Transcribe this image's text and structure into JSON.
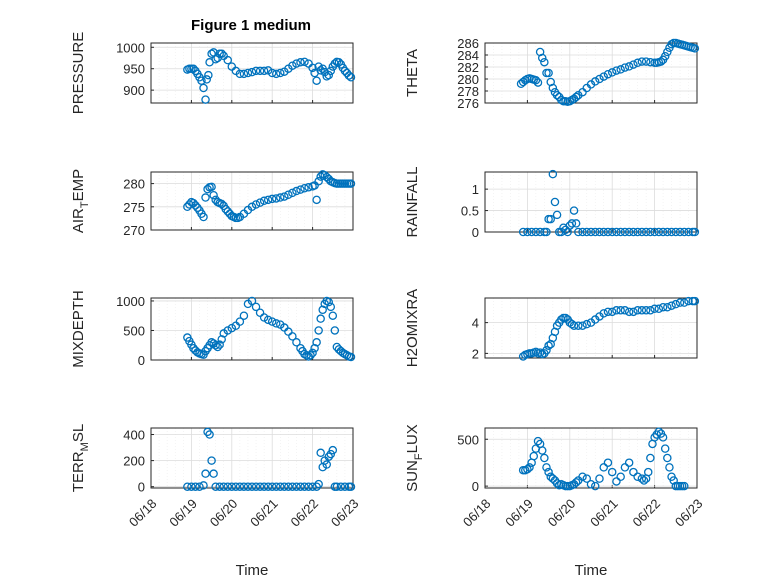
{
  "figure_title": "Figure 1 medium",
  "colors": {
    "marker": "#0072bd",
    "axis": "#262626",
    "grid": "#dcdcdc"
  },
  "chart_data": [
    {
      "type": "scatter",
      "title": "Figure 1 medium",
      "ylabel": "PRESSURE",
      "xlabel": "",
      "xlim": [
        0,
        5
      ],
      "xticks": [
        "06/18",
        "06/19",
        "06/20",
        "06/21",
        "06/22",
        "06/23"
      ],
      "ylim": [
        870,
        1010
      ],
      "yticks": [
        900,
        950,
        1000
      ],
      "grid": true,
      "x": [
        0.9,
        0.95,
        1.0,
        1.05,
        1.1,
        1.15,
        1.2,
        1.25,
        1.3,
        1.35,
        1.38,
        1.42,
        1.45,
        1.5,
        1.55,
        1.6,
        1.65,
        1.7,
        1.75,
        1.8,
        1.9,
        2.0,
        2.1,
        2.2,
        2.3,
        2.4,
        2.5,
        2.6,
        2.7,
        2.8,
        2.9,
        3.0,
        3.1,
        3.2,
        3.3,
        3.4,
        3.5,
        3.6,
        3.7,
        3.8,
        3.9,
        4.0,
        4.05,
        4.1,
        4.15,
        4.2,
        4.25,
        4.3,
        4.35,
        4.4,
        4.45,
        4.5,
        4.55,
        4.6,
        4.65,
        4.7,
        4.75,
        4.8,
        4.85,
        4.9,
        4.95
      ],
      "y": [
        948,
        950,
        950,
        950,
        945,
        938,
        930,
        922,
        905,
        878,
        925,
        935,
        965,
        985,
        988,
        972,
        975,
        985,
        985,
        980,
        970,
        955,
        945,
        938,
        938,
        940,
        942,
        945,
        945,
        945,
        946,
        940,
        938,
        940,
        943,
        950,
        957,
        962,
        965,
        966,
        962,
        952,
        940,
        922,
        955,
        946,
        950,
        942,
        932,
        935,
        945,
        955,
        962,
        966,
        965,
        960,
        952,
        945,
        940,
        934,
        930
      ],
      "ylabel_sub": ""
    },
    {
      "type": "scatter",
      "ylabel": "THETA",
      "xlabel": "",
      "xlim": [
        0,
        5
      ],
      "xticks": [
        "06/18",
        "06/19",
        "06/20",
        "06/21",
        "06/22",
        "06/23"
      ],
      "ylim": [
        276,
        286
      ],
      "yticks": [
        276,
        278,
        280,
        282,
        284,
        286
      ],
      "grid": true,
      "x": [
        0.85,
        0.9,
        0.95,
        1.0,
        1.05,
        1.1,
        1.15,
        1.2,
        1.25,
        1.3,
        1.35,
        1.4,
        1.45,
        1.5,
        1.55,
        1.6,
        1.65,
        1.7,
        1.75,
        1.8,
        1.85,
        1.9,
        1.95,
        2.0,
        2.05,
        2.1,
        2.15,
        2.2,
        2.3,
        2.4,
        2.5,
        2.6,
        2.7,
        2.8,
        2.9,
        3.0,
        3.1,
        3.2,
        3.3,
        3.4,
        3.5,
        3.6,
        3.7,
        3.8,
        3.9,
        4.0,
        4.05,
        4.1,
        4.15,
        4.2,
        4.25,
        4.3,
        4.35,
        4.4,
        4.45,
        4.5,
        4.55,
        4.6,
        4.65,
        4.7,
        4.75,
        4.8,
        4.85,
        4.9,
        4.95
      ],
      "y": [
        279.2,
        279.5,
        279.8,
        280.0,
        280.1,
        280.0,
        279.9,
        279.8,
        279.4,
        284.5,
        283.5,
        282.8,
        281.0,
        281.0,
        279.5,
        278.5,
        277.8,
        277.3,
        277.0,
        276.5,
        276.3,
        276.3,
        276.2,
        276.3,
        276.5,
        276.7,
        277.0,
        277.3,
        277.8,
        278.5,
        279.1,
        279.6,
        280.0,
        280.4,
        280.8,
        281.1,
        281.4,
        281.6,
        281.9,
        282.1,
        282.4,
        282.7,
        282.9,
        282.9,
        282.8,
        282.7,
        282.7,
        282.8,
        282.9,
        283.2,
        283.8,
        284.5,
        285.2,
        285.8,
        286.0,
        286.0,
        285.9,
        285.8,
        285.7,
        285.6,
        285.5,
        285.4,
        285.3,
        285.2,
        285.1
      ],
      "ylabel_sub": ""
    },
    {
      "type": "scatter",
      "ylabel": "AIR",
      "ylabel_sub": "T",
      "ylabel_suffix": "EMP",
      "xlabel": "",
      "xlim": [
        0,
        5
      ],
      "xticks": [
        "06/18",
        "06/19",
        "06/20",
        "06/21",
        "06/22",
        "06/23"
      ],
      "ylim": [
        270,
        282.5
      ],
      "yticks": [
        270,
        275,
        280
      ],
      "grid": true,
      "x": [
        0.9,
        0.95,
        1.0,
        1.05,
        1.1,
        1.15,
        1.2,
        1.25,
        1.3,
        1.35,
        1.4,
        1.45,
        1.5,
        1.55,
        1.6,
        1.65,
        1.7,
        1.75,
        1.8,
        1.85,
        1.9,
        1.95,
        2.0,
        2.05,
        2.1,
        2.15,
        2.2,
        2.3,
        2.4,
        2.5,
        2.6,
        2.7,
        2.8,
        2.9,
        3.0,
        3.1,
        3.2,
        3.3,
        3.4,
        3.5,
        3.6,
        3.7,
        3.8,
        3.9,
        4.0,
        4.05,
        4.1,
        4.15,
        4.2,
        4.25,
        4.3,
        4.35,
        4.4,
        4.45,
        4.5,
        4.55,
        4.6,
        4.65,
        4.7,
        4.75,
        4.8,
        4.85,
        4.9,
        4.95
      ],
      "y": [
        275.0,
        275.5,
        276.0,
        275.8,
        275.3,
        274.8,
        274.2,
        273.5,
        272.8,
        277.0,
        278.8,
        279.2,
        279.3,
        277.5,
        276.5,
        276.0,
        275.8,
        275.6,
        275.2,
        274.5,
        274.0,
        273.5,
        273.0,
        272.8,
        272.6,
        272.6,
        272.8,
        273.5,
        274.3,
        275.0,
        275.5,
        275.9,
        276.3,
        276.5,
        276.7,
        276.8,
        277.0,
        277.2,
        277.6,
        278.0,
        278.4,
        278.7,
        279.0,
        279.2,
        279.4,
        279.6,
        276.5,
        280.5,
        281.5,
        282.0,
        281.8,
        281.4,
        281.0,
        280.5,
        280.3,
        280.1,
        280.0,
        280.0,
        280.0,
        280.0,
        280.0,
        280.0,
        280.0,
        280.0
      ]
    },
    {
      "type": "scatter",
      "ylabel": "RAINFALL",
      "xlabel": "",
      "xlim": [
        0,
        5
      ],
      "xticks": [
        "06/18",
        "06/19",
        "06/20",
        "06/21",
        "06/22",
        "06/23"
      ],
      "ylim": [
        0,
        1.4
      ],
      "yticks": [
        0,
        0.5,
        1
      ],
      "ytick_labels": [
        "0",
        "0.5",
        "1"
      ],
      "grid": true,
      "x": [
        0.9,
        1.0,
        1.1,
        1.2,
        1.3,
        1.4,
        1.45,
        1.5,
        1.55,
        1.6,
        1.65,
        1.7,
        1.75,
        1.8,
        1.85,
        1.9,
        1.95,
        2.0,
        2.05,
        2.1,
        2.15,
        2.2,
        2.3,
        2.4,
        2.5,
        2.6,
        2.7,
        2.8,
        2.9,
        3.0,
        3.1,
        3.2,
        3.3,
        3.4,
        3.5,
        3.6,
        3.7,
        3.8,
        3.9,
        4.0,
        4.1,
        4.2,
        4.3,
        4.4,
        4.5,
        4.6,
        4.7,
        4.8,
        4.9,
        4.95
      ],
      "y": [
        0,
        0,
        0,
        0,
        0,
        0,
        0,
        0.3,
        0.3,
        1.35,
        0.7,
        0.4,
        0,
        0,
        0.1,
        0.05,
        0,
        0.15,
        0.2,
        0.5,
        0.2,
        0,
        0,
        0,
        0,
        0,
        0,
        0,
        0,
        0,
        0,
        0,
        0,
        0,
        0,
        0,
        0,
        0,
        0,
        0,
        0,
        0,
        0,
        0,
        0,
        0,
        0,
        0,
        0,
        0
      ],
      "ylabel_sub": ""
    },
    {
      "type": "scatter",
      "ylabel": "MIXDEPTH",
      "xlabel": "",
      "xlim": [
        0,
        5
      ],
      "xticks": [
        "06/18",
        "06/19",
        "06/20",
        "06/21",
        "06/22",
        "06/23"
      ],
      "ylim": [
        0,
        1050
      ],
      "yticks": [
        0,
        500,
        1000
      ],
      "grid": true,
      "x": [
        0.9,
        0.95,
        1.0,
        1.05,
        1.1,
        1.15,
        1.2,
        1.25,
        1.3,
        1.35,
        1.4,
        1.45,
        1.5,
        1.55,
        1.6,
        1.65,
        1.7,
        1.75,
        1.8,
        1.9,
        2.0,
        2.1,
        2.2,
        2.3,
        2.4,
        2.5,
        2.6,
        2.7,
        2.8,
        2.9,
        3.0,
        3.1,
        3.2,
        3.3,
        3.4,
        3.5,
        3.6,
        3.7,
        3.75,
        3.8,
        3.85,
        3.9,
        3.95,
        4.0,
        4.05,
        4.1,
        4.15,
        4.2,
        4.25,
        4.3,
        4.35,
        4.4,
        4.45,
        4.5,
        4.55,
        4.6,
        4.65,
        4.7,
        4.75,
        4.8,
        4.85,
        4.9,
        4.95
      ],
      "y": [
        380,
        320,
        260,
        200,
        160,
        130,
        110,
        100,
        90,
        150,
        200,
        250,
        300,
        280,
        250,
        220,
        260,
        350,
        450,
        500,
        540,
        580,
        650,
        750,
        950,
        1000,
        900,
        800,
        720,
        680,
        650,
        620,
        600,
        550,
        480,
        400,
        300,
        200,
        150,
        100,
        80,
        60,
        80,
        120,
        200,
        300,
        500,
        700,
        850,
        950,
        1000,
        980,
        900,
        750,
        500,
        220,
        180,
        150,
        120,
        100,
        80,
        60,
        50
      ],
      "ylabel_sub": ""
    },
    {
      "type": "scatter",
      "ylabel": "H2OMIXRA",
      "xlabel": "",
      "xlim": [
        0,
        5
      ],
      "xticks": [
        "06/18",
        "06/19",
        "06/20",
        "06/21",
        "06/22",
        "06/23"
      ],
      "ylim": [
        1.7,
        5.6
      ],
      "yticks": [
        2,
        4
      ],
      "grid": true,
      "x": [
        0.9,
        0.95,
        1.0,
        1.05,
        1.1,
        1.15,
        1.2,
        1.25,
        1.3,
        1.35,
        1.4,
        1.45,
        1.5,
        1.55,
        1.6,
        1.65,
        1.7,
        1.75,
        1.8,
        1.85,
        1.9,
        1.95,
        2.0,
        2.05,
        2.1,
        2.2,
        2.3,
        2.4,
        2.5,
        2.6,
        2.7,
        2.8,
        2.9,
        3.0,
        3.1,
        3.2,
        3.3,
        3.4,
        3.5,
        3.6,
        3.7,
        3.8,
        3.9,
        4.0,
        4.1,
        4.2,
        4.3,
        4.4,
        4.5,
        4.6,
        4.7,
        4.8,
        4.9,
        4.95
      ],
      "y": [
        1.8,
        1.9,
        1.95,
        2.0,
        2.0,
        2.05,
        2.1,
        2.0,
        2.05,
        1.95,
        2.0,
        2.2,
        2.5,
        2.6,
        3.0,
        3.4,
        3.8,
        4.0,
        4.2,
        4.3,
        4.3,
        4.2,
        4.0,
        3.9,
        3.8,
        3.8,
        3.8,
        3.9,
        4.0,
        4.2,
        4.4,
        4.6,
        4.7,
        4.7,
        4.8,
        4.8,
        4.8,
        4.7,
        4.7,
        4.8,
        4.8,
        4.8,
        4.8,
        4.9,
        4.9,
        5.0,
        5.0,
        5.1,
        5.2,
        5.3,
        5.3,
        5.4,
        5.4,
        5.4
      ],
      "ylabel_sub": ""
    },
    {
      "type": "scatter",
      "ylabel": "TERR",
      "ylabel_sub": "M",
      "ylabel_suffix": "SL",
      "xlabel": "Time",
      "xlim": [
        0,
        5
      ],
      "xticks": [
        "06/18",
        "06/19",
        "06/20",
        "06/21",
        "06/22",
        "06/23"
      ],
      "ylim": [
        -10,
        450
      ],
      "yticks": [
        0,
        200,
        400
      ],
      "grid": true,
      "x": [
        0.9,
        1.0,
        1.1,
        1.2,
        1.3,
        1.35,
        1.4,
        1.45,
        1.5,
        1.55,
        1.6,
        1.7,
        1.8,
        1.9,
        2.0,
        2.1,
        2.2,
        2.3,
        2.4,
        2.5,
        2.6,
        2.7,
        2.8,
        2.9,
        3.0,
        3.1,
        3.2,
        3.3,
        3.4,
        3.5,
        3.6,
        3.7,
        3.8,
        3.9,
        4.0,
        4.1,
        4.15,
        4.2,
        4.25,
        4.3,
        4.35,
        4.4,
        4.45,
        4.5,
        4.55,
        4.6,
        4.7,
        4.8,
        4.9,
        4.95
      ],
      "y": [
        0,
        0,
        0,
        0,
        10,
        100,
        420,
        400,
        200,
        100,
        0,
        0,
        0,
        0,
        0,
        0,
        0,
        0,
        0,
        0,
        0,
        0,
        0,
        0,
        0,
        0,
        0,
        0,
        0,
        0,
        0,
        0,
        0,
        0,
        0,
        0,
        20,
        260,
        150,
        200,
        170,
        230,
        250,
        280,
        0,
        0,
        0,
        0,
        0,
        0
      ]
    },
    {
      "type": "scatter",
      "ylabel": "SUN",
      "ylabel_sub": "F",
      "ylabel_suffix": "LUX",
      "xlabel": "Time",
      "xlim": [
        0,
        5
      ],
      "xticks": [
        "06/18",
        "06/19",
        "06/20",
        "06/21",
        "06/22",
        "06/23"
      ],
      "ylim": [
        -20,
        620
      ],
      "yticks": [
        0,
        500
      ],
      "grid": true,
      "x": [
        0.9,
        0.95,
        1.0,
        1.05,
        1.1,
        1.15,
        1.2,
        1.25,
        1.3,
        1.35,
        1.4,
        1.45,
        1.5,
        1.55,
        1.6,
        1.65,
        1.7,
        1.75,
        1.8,
        1.85,
        1.9,
        1.95,
        2.0,
        2.05,
        2.1,
        2.15,
        2.2,
        2.3,
        2.4,
        2.5,
        2.6,
        2.7,
        2.8,
        2.9,
        3.0,
        3.1,
        3.2,
        3.3,
        3.4,
        3.5,
        3.6,
        3.7,
        3.75,
        3.8,
        3.85,
        3.9,
        3.95,
        4.0,
        4.05,
        4.1,
        4.15,
        4.2,
        4.25,
        4.3,
        4.35,
        4.4,
        4.45,
        4.5,
        4.55,
        4.6,
        4.65,
        4.7
      ],
      "y": [
        170,
        170,
        180,
        200,
        250,
        320,
        400,
        480,
        450,
        380,
        300,
        200,
        150,
        100,
        80,
        60,
        30,
        10,
        20,
        10,
        0,
        0,
        0,
        10,
        20,
        40,
        60,
        100,
        80,
        20,
        0,
        80,
        200,
        250,
        150,
        50,
        100,
        200,
        250,
        150,
        100,
        80,
        60,
        80,
        150,
        300,
        450,
        520,
        550,
        580,
        560,
        520,
        400,
        300,
        200,
        100,
        60,
        0,
        0,
        0,
        0,
        0
      ]
    }
  ]
}
